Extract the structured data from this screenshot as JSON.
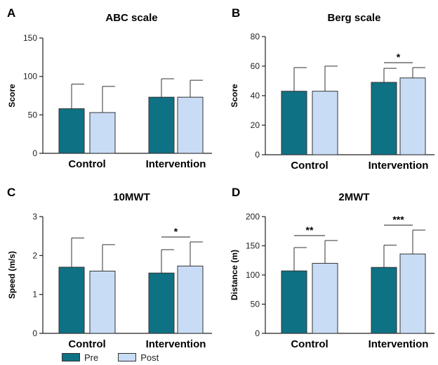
{
  "legend": {
    "pre": "Pre",
    "post": "Post"
  },
  "colors": {
    "pre": "#0f7184",
    "post": "#c9dcf6",
    "stroke": "#333333"
  },
  "chart_data": [
    {
      "type": "bar",
      "panel_letter": "A",
      "title": "ABC scale",
      "ylabel": "Score",
      "ylim": [
        0,
        150
      ],
      "yticks": [
        0,
        50,
        100,
        150
      ],
      "categories": [
        "Control",
        "Intervention"
      ],
      "series": [
        {
          "name": "Pre",
          "values": [
            58,
            73
          ],
          "error": [
            32,
            24
          ]
        },
        {
          "name": "Post",
          "values": [
            53,
            73
          ],
          "error": [
            34,
            22
          ]
        }
      ],
      "significance": []
    },
    {
      "type": "bar",
      "panel_letter": "B",
      "title": "Berg scale",
      "ylabel": "Score",
      "ylim": [
        0,
        80
      ],
      "yticks": [
        0,
        20,
        40,
        60,
        80
      ],
      "categories": [
        "Control",
        "Intervention"
      ],
      "series": [
        {
          "name": "Pre",
          "values": [
            43,
            49
          ],
          "error": [
            16,
            9.5
          ]
        },
        {
          "name": "Post",
          "values": [
            43,
            52
          ],
          "error": [
            17,
            7
          ]
        }
      ],
      "significance": [
        {
          "category": 1,
          "label": "*"
        }
      ]
    },
    {
      "type": "bar",
      "panel_letter": "C",
      "title": "10MWT",
      "ylabel": "Speed (m/s)",
      "ylim": [
        0,
        3
      ],
      "yticks": [
        0,
        1,
        2,
        3
      ],
      "categories": [
        "Control",
        "Intervention"
      ],
      "series": [
        {
          "name": "Pre",
          "values": [
            1.7,
            1.55
          ],
          "error": [
            0.75,
            0.6
          ]
        },
        {
          "name": "Post",
          "values": [
            1.6,
            1.73
          ],
          "error": [
            0.68,
            0.62
          ]
        }
      ],
      "significance": [
        {
          "category": 1,
          "label": "*"
        }
      ]
    },
    {
      "type": "bar",
      "panel_letter": "D",
      "title": "2MWT",
      "ylabel": "Distance (m)",
      "ylim": [
        0,
        200
      ],
      "yticks": [
        0,
        50,
        100,
        150,
        200
      ],
      "categories": [
        "Control",
        "Intervention"
      ],
      "series": [
        {
          "name": "Pre",
          "values": [
            107,
            113
          ],
          "error": [
            40,
            38
          ]
        },
        {
          "name": "Post",
          "values": [
            120,
            136
          ],
          "error": [
            39,
            41
          ]
        }
      ],
      "significance": [
        {
          "category": 0,
          "label": "**"
        },
        {
          "category": 1,
          "label": "***"
        }
      ]
    }
  ]
}
